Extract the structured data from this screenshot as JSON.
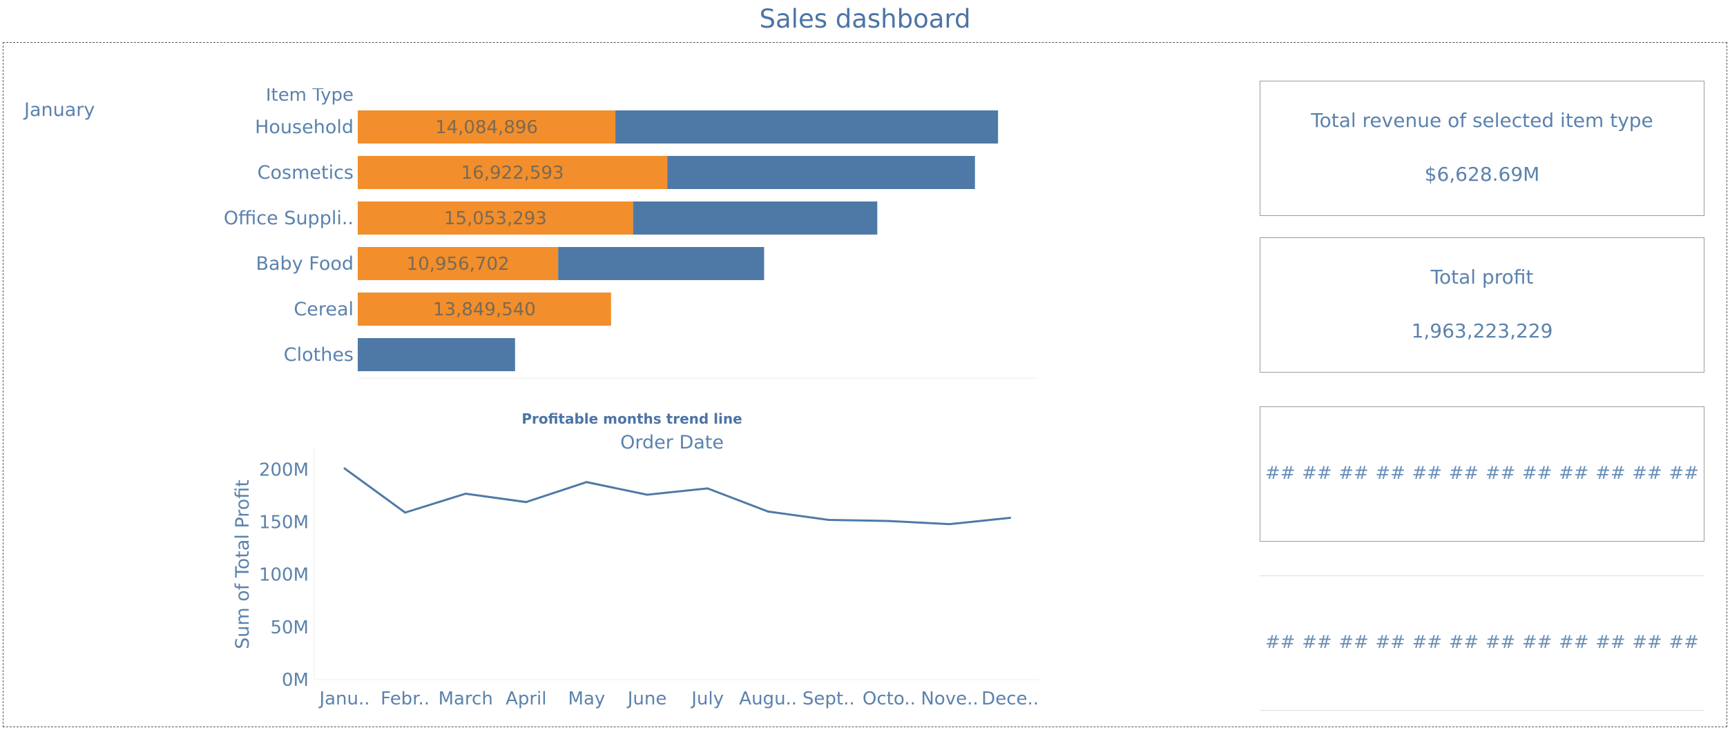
{
  "dashboard": {
    "title": "Sales dashboard",
    "filter_value": "January"
  },
  "chart_data": [
    {
      "type": "bar",
      "stacked": true,
      "ylabel": "Item Type",
      "categories": [
        "Household",
        "Cosmetics",
        "Office Suppli..",
        "Baby Food",
        "Cereal",
        "Clothes"
      ],
      "series": [
        {
          "values": [
            14084896,
            16922593,
            15053293,
            10956702,
            13849540,
            null
          ],
          "color": "#f28e2b"
        },
        {
          "values": [
            20920000,
            16820000,
            13350000,
            11260000,
            null,
            8600000
          ],
          "color": "#4e79a7"
        }
      ],
      "data_labels": [
        "14,084,896",
        "16,922,593",
        "15,053,293",
        "10,956,702",
        "13,849,540",
        ""
      ],
      "xlim": [
        0,
        37000000
      ]
    },
    {
      "type": "line",
      "title": "Profitable months trend line",
      "xlabel": "Order Date",
      "ylabel": "Sum of Total Profit",
      "categories": [
        "Janu..",
        "Febr..",
        "March",
        "April",
        "May",
        "June",
        "July",
        "Augu..",
        "Sept..",
        "Octo..",
        "Nove..",
        "Dece.."
      ],
      "values": [
        201000000,
        159000000,
        177000000,
        169000000,
        188000000,
        176000000,
        182000000,
        160000000,
        152000000,
        151000000,
        148000000,
        154000000
      ],
      "yticks": [
        "0M",
        "50M",
        "100M",
        "150M",
        "200M"
      ],
      "ylim": [
        0,
        220000000
      ],
      "color": "#4e79a7"
    }
  ],
  "kpis": {
    "revenue_title": "Total revenue of selected item type",
    "revenue_value": "$6,628.69M",
    "profit_title": "Total profit",
    "profit_value": "1,963,223,229"
  },
  "hash_rows": [
    [
      "##",
      "##",
      "##",
      "##",
      "##",
      "##",
      "##",
      "##",
      "##",
      "##",
      "##",
      "##"
    ],
    [
      "##",
      "##",
      "##",
      "##",
      "##",
      "##",
      "##",
      "##",
      "##",
      "##",
      "##",
      "##"
    ]
  ]
}
